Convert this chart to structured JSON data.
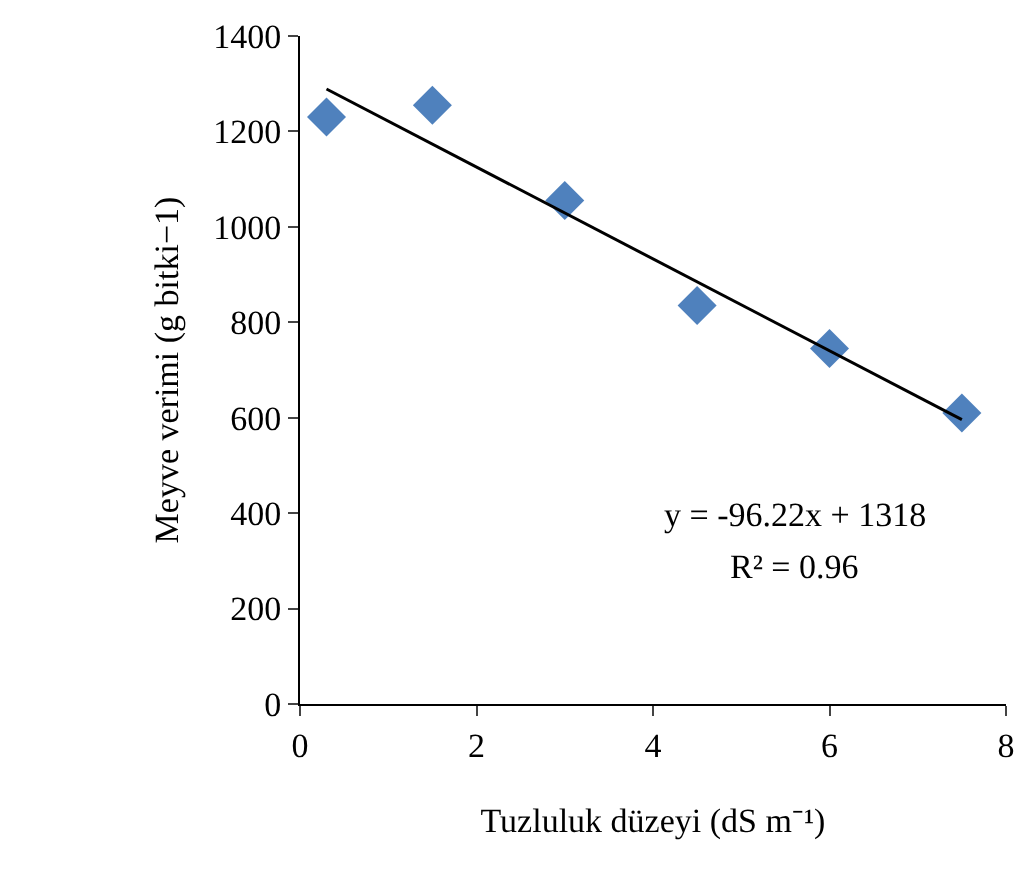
{
  "chart_data": {
    "type": "scatter",
    "xlabel": "Tuzluluk düzeyi (dS m⁻¹)",
    "ylabel": "Meyve verimi (g bitki−1)",
    "x": [
      0.3,
      1.5,
      3,
      4.5,
      6,
      7.5
    ],
    "series": [
      {
        "color": "#4f81bd",
        "values": [
          1230,
          1255,
          1055,
          835,
          745,
          610
        ],
        "marker": "diamond"
      },
      {
        "type": "line",
        "color": "#000000",
        "x": [
          0.3,
          7.5
        ],
        "values": [
          1289,
          596
        ],
        "marker": "none",
        "line_style": "solid"
      }
    ],
    "xlim": [
      0,
      8
    ],
    "xticks": [
      0,
      2,
      4,
      6,
      8
    ],
    "ylim": [
      0,
      1400
    ],
    "yticks": [
      0,
      200,
      400,
      600,
      800,
      1000,
      1200,
      1400
    ],
    "annotations": [
      "y = -96.22x + 1318",
      "R² = 0.96"
    ],
    "grid": false
  }
}
